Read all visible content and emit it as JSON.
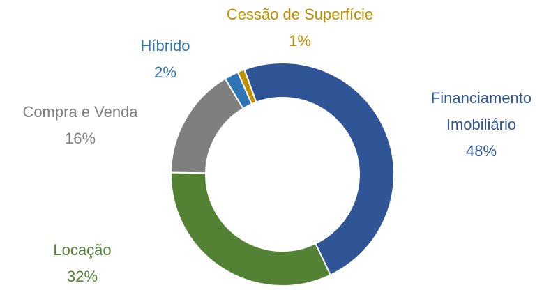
{
  "chart_data": {
    "type": "donut",
    "categories": [
      "Financiamento Imobiliário",
      "Locação",
      "Compra e Venda",
      "Híbrido",
      "Cessão de Superfície"
    ],
    "values": [
      48,
      32,
      16,
      2,
      1
    ],
    "value_labels": [
      "48%",
      "32%",
      "16%",
      "2%",
      "1%"
    ],
    "colors": [
      "#2f5597",
      "#548235",
      "#7f7f7f",
      "#2e75b6",
      "#bf9000"
    ]
  }
}
